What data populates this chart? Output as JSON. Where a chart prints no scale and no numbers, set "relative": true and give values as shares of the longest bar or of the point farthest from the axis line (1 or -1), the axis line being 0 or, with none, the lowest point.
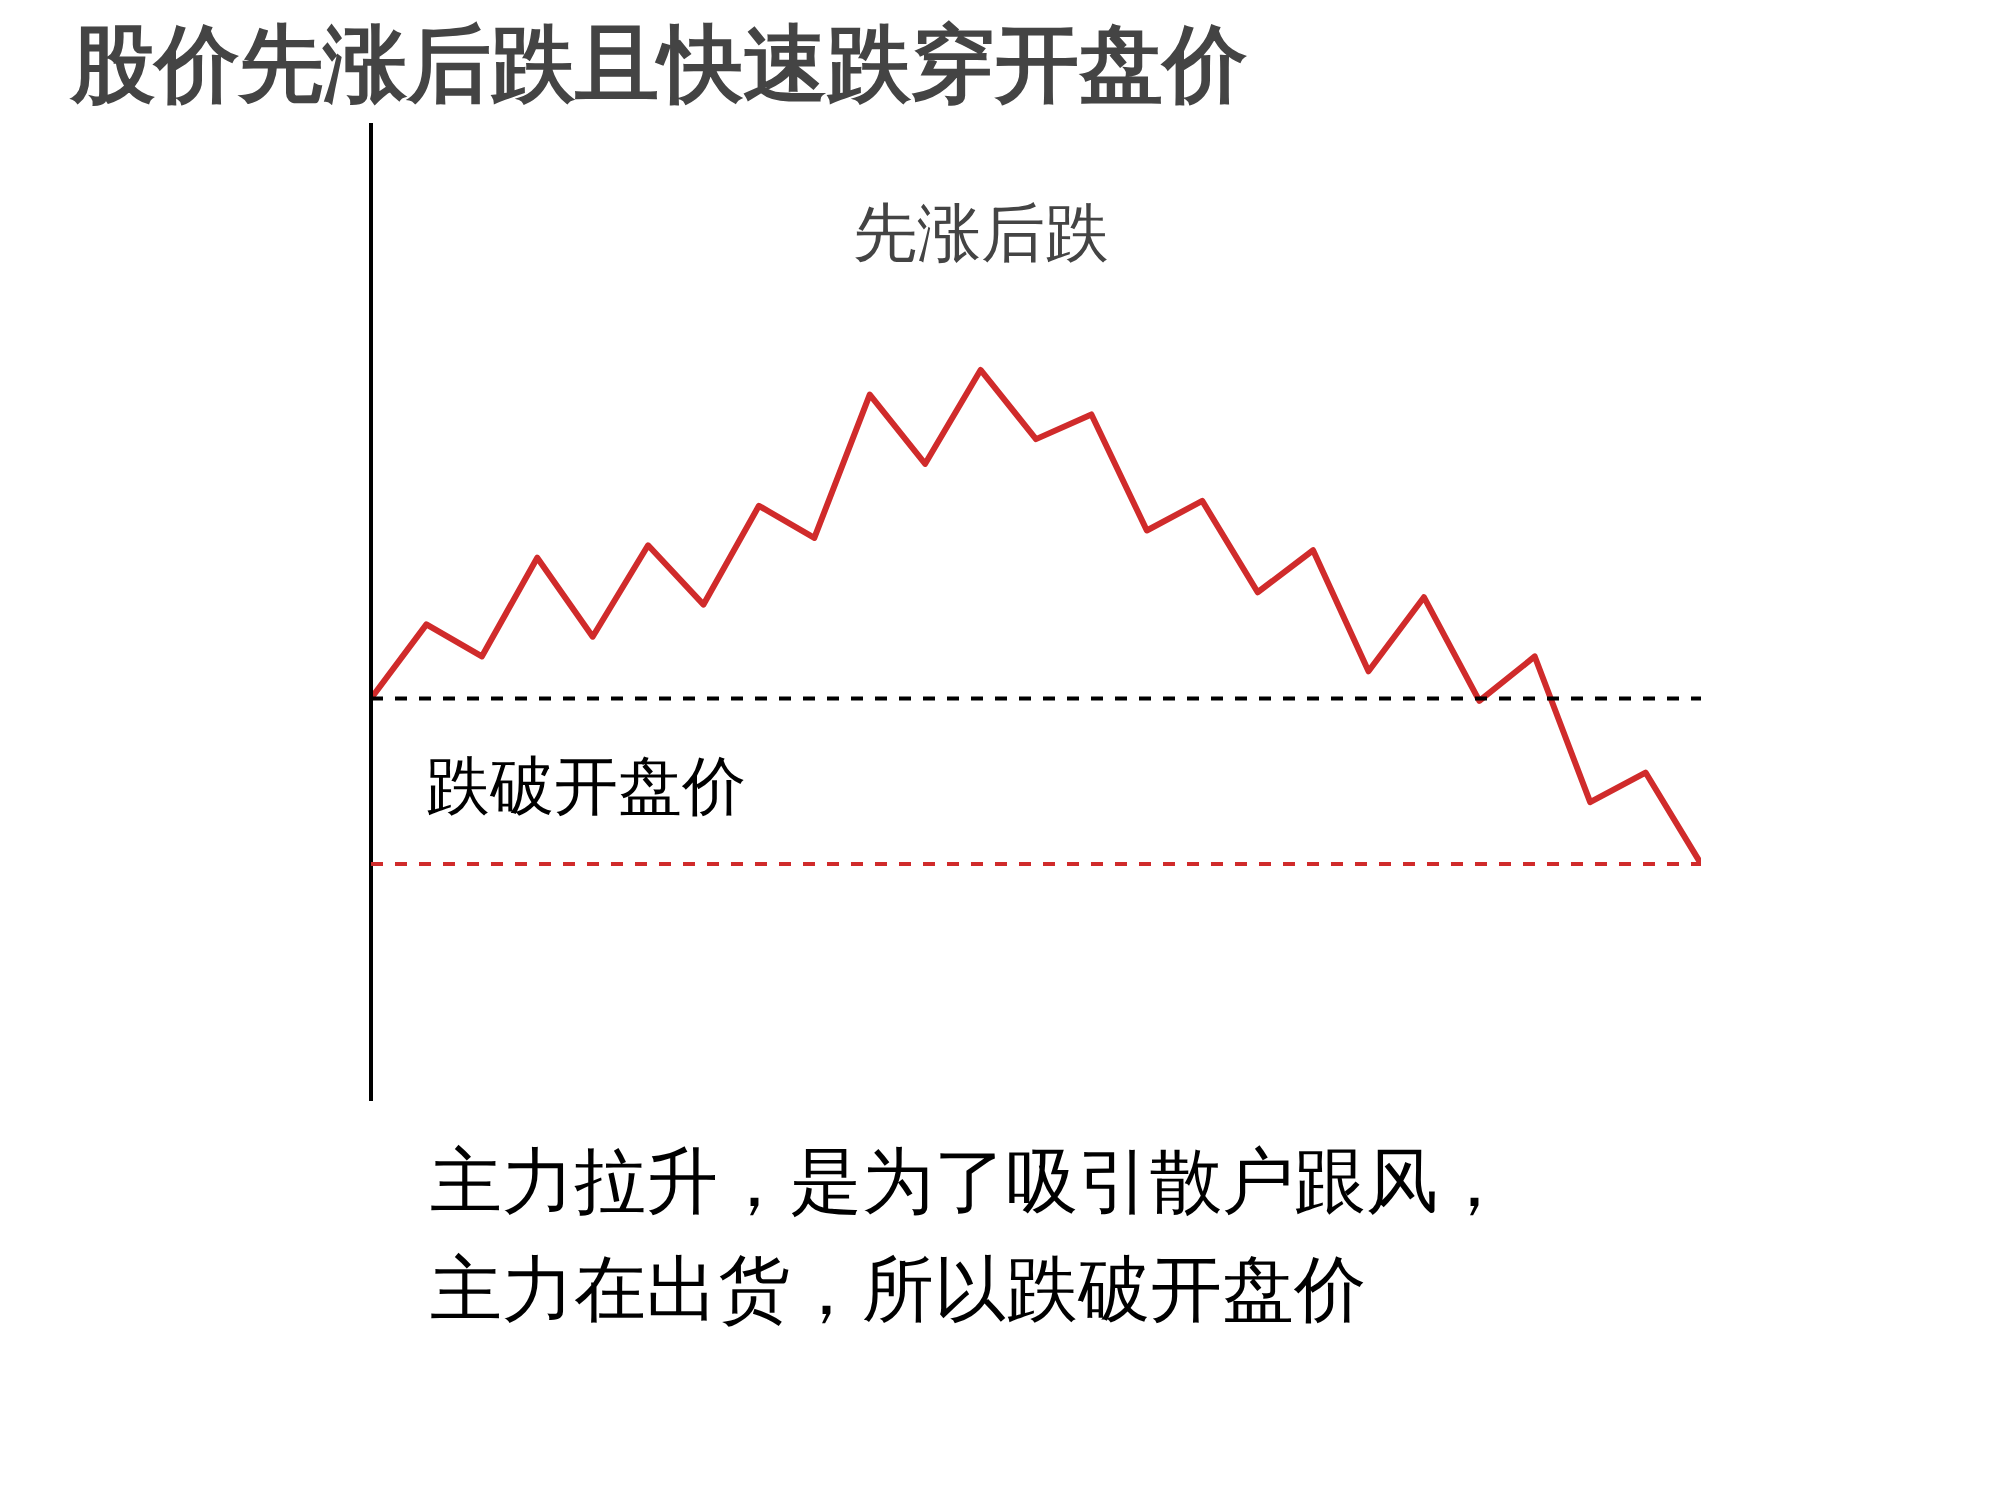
{
  "chart_data": {
    "type": "line",
    "title": "股价先涨后跌且快速跌穿开盘价",
    "relative": true,
    "categories": [
      null,
      null,
      null,
      null,
      null,
      null,
      null,
      null,
      null,
      null,
      null,
      null,
      null,
      null,
      null,
      null,
      null,
      null,
      null,
      null,
      null,
      null,
      null,
      null,
      null
    ],
    "series": [
      {
        "color": "#d02b2b",
        "values": [
          0.335,
          0.485,
          0.42,
          0.62,
          0.46,
          0.645,
          0.525,
          0.725,
          0.66,
          0.95,
          0.81,
          1,
          0.86,
          0.91,
          0.675,
          0.735,
          0.55,
          0.635,
          0.39,
          0.54,
          0.33,
          0.42,
          0.125,
          0.185,
          0
        ]
      }
    ],
    "ref_lines": [
      {
        "axis": "y",
        "value": 0.335,
        "color": "#000000",
        "line_style": "dashed"
      },
      {
        "axis": "y",
        "value": 0,
        "color": "#d02b2b",
        "line_style": "dashed",
        "label": "跌破开盘价"
      }
    ],
    "annotations": [
      "先涨后跌",
      "主力拉升，是为了吸引散户跟风，",
      "主力在出货，所以跌破开盘价"
    ],
    "grid": false,
    "marker": "none",
    "line_style": "solid"
  }
}
